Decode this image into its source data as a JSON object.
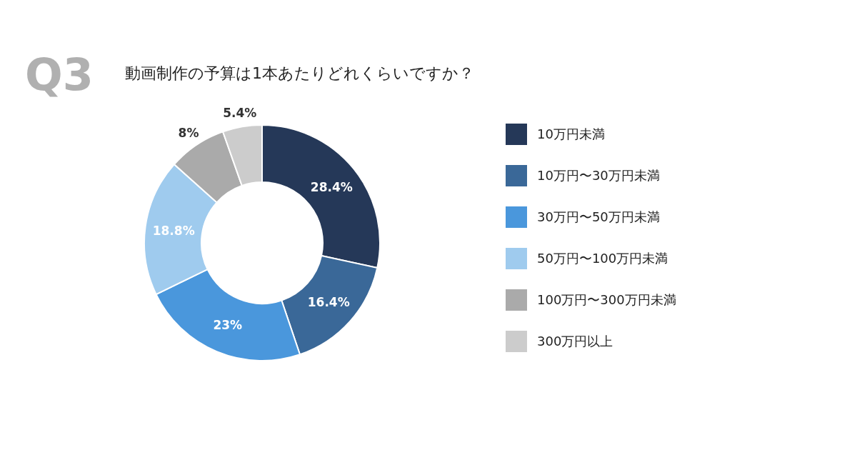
{
  "chart_data": {
    "type": "donut",
    "title": "動画制作の予算は1本あたりどれくらいですか？",
    "annotations": [
      "Q3"
    ],
    "categories": [
      "10万円未満",
      "10万円〜30万円未満",
      "30万円〜50万円未満",
      "50万円〜100万円未満",
      "100万円〜300万円未満",
      "300万円以上"
    ],
    "values": [
      28.4,
      16.4,
      23,
      18.8,
      8,
      5.4
    ],
    "colors": [
      "#253858",
      "#3a6898",
      "#4a97dc",
      "#9fcbee",
      "#aaaaaa",
      "#cccccc"
    ],
    "value_labels": [
      "28.4%",
      "16.4%",
      "23%",
      "18.8%",
      "8%",
      "5.4%"
    ],
    "legend": "right"
  }
}
